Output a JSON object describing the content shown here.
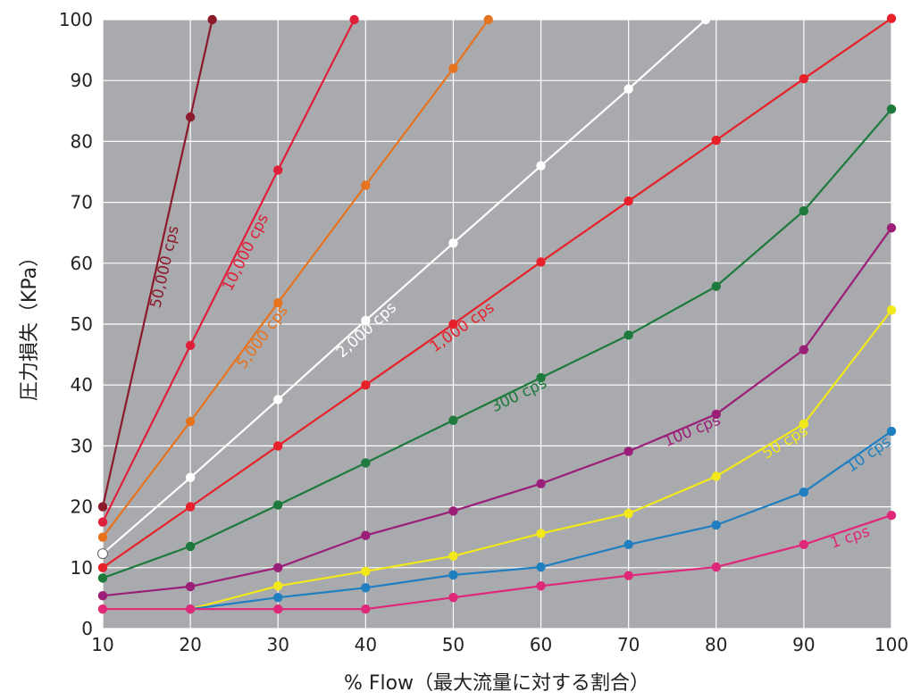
{
  "chart_data": {
    "type": "line",
    "xlabel": "% Flow（最大流量に対する割合）",
    "ylabel": "圧力損失（KPa）",
    "xlim": [
      10,
      100
    ],
    "ylim": [
      0,
      100
    ],
    "x_ticks": [
      "10",
      "20",
      "30",
      "40",
      "50",
      "60",
      "70",
      "80",
      "90",
      "100"
    ],
    "y_ticks": [
      "0",
      "10",
      "20",
      "30",
      "40",
      "50",
      "60",
      "70",
      "80",
      "90",
      "100"
    ],
    "grid": true,
    "background_color": "#a8aaad",
    "series": [
      {
        "name": "50,000 cps",
        "color": "#8b1a2b",
        "points": [
          [
            10,
            20
          ],
          [
            20,
            84
          ],
          [
            22.5,
            100
          ]
        ]
      },
      {
        "name": "10,000 cps",
        "color": "#e0203a",
        "points": [
          [
            10,
            17.5
          ],
          [
            20,
            46.5
          ],
          [
            30,
            75.3
          ],
          [
            38.7,
            100
          ]
        ]
      },
      {
        "name": "5,000 cps",
        "color": "#e8731e",
        "points": [
          [
            10,
            15
          ],
          [
            20,
            34
          ],
          [
            30,
            53.5
          ],
          [
            40,
            72.8
          ],
          [
            50,
            92
          ],
          [
            54,
            100
          ]
        ]
      },
      {
        "name": "2,000 cps",
        "color": "#ffffff",
        "points": [
          [
            10,
            12.3
          ],
          [
            20,
            24.8
          ],
          [
            30,
            37.6
          ],
          [
            40,
            50.6
          ],
          [
            50,
            63.3
          ],
          [
            60,
            76
          ],
          [
            70,
            88.6
          ],
          [
            78.8,
            100
          ]
        ]
      },
      {
        "name": "1,000 cps",
        "color": "#e8202a",
        "points": [
          [
            10,
            10
          ],
          [
            20,
            20
          ],
          [
            30,
            30
          ],
          [
            40,
            40
          ],
          [
            50,
            50
          ],
          [
            60,
            60.2
          ],
          [
            70,
            70.2
          ],
          [
            80,
            80.2
          ],
          [
            90,
            90.3
          ],
          [
            100,
            100.2
          ]
        ]
      },
      {
        "name": "300 cps",
        "color": "#1e7a3c",
        "points": [
          [
            10,
            8.3
          ],
          [
            20,
            13.5
          ],
          [
            30,
            20.3
          ],
          [
            40,
            27.2
          ],
          [
            50,
            34.2
          ],
          [
            60,
            41.2
          ],
          [
            70,
            48.2
          ],
          [
            80,
            56.2
          ],
          [
            90,
            68.6
          ],
          [
            100,
            85.3
          ]
        ]
      },
      {
        "name": "100 cps",
        "color": "#9b1f78",
        "points": [
          [
            10,
            5.4
          ],
          [
            20,
            6.9
          ],
          [
            30,
            10
          ],
          [
            40,
            15.3
          ],
          [
            50,
            19.3
          ],
          [
            60,
            23.8
          ],
          [
            70,
            29.1
          ],
          [
            80,
            35.2
          ],
          [
            90,
            45.8
          ],
          [
            100,
            65.8
          ]
        ]
      },
      {
        "name": "50 cps",
        "color": "#f2e81a",
        "points": [
          [
            10,
            3.2
          ],
          [
            20,
            3.2
          ],
          [
            30,
            7
          ],
          [
            40,
            9.4
          ],
          [
            50,
            11.9
          ],
          [
            60,
            15.6
          ],
          [
            70,
            18.9
          ],
          [
            80,
            25
          ],
          [
            90,
            33.6
          ],
          [
            100,
            52.3
          ]
        ]
      },
      {
        "name": "10 cps",
        "color": "#1f7fc0",
        "points": [
          [
            20,
            3.2
          ],
          [
            30,
            5.1
          ],
          [
            40,
            6.7
          ],
          [
            50,
            8.8
          ],
          [
            60,
            10.1
          ],
          [
            70,
            13.8
          ],
          [
            80,
            17
          ],
          [
            90,
            22.4
          ],
          [
            100,
            32.4
          ]
        ]
      },
      {
        "name": "1 cps",
        "color": "#e0287a",
        "points": [
          [
            10,
            3.2
          ],
          [
            20,
            3.2
          ],
          [
            30,
            3.2
          ],
          [
            40,
            3.2
          ],
          [
            50,
            5.1
          ],
          [
            60,
            7
          ],
          [
            70,
            8.7
          ],
          [
            80,
            10.1
          ],
          [
            90,
            13.8
          ],
          [
            100,
            18.6
          ]
        ]
      }
    ]
  }
}
